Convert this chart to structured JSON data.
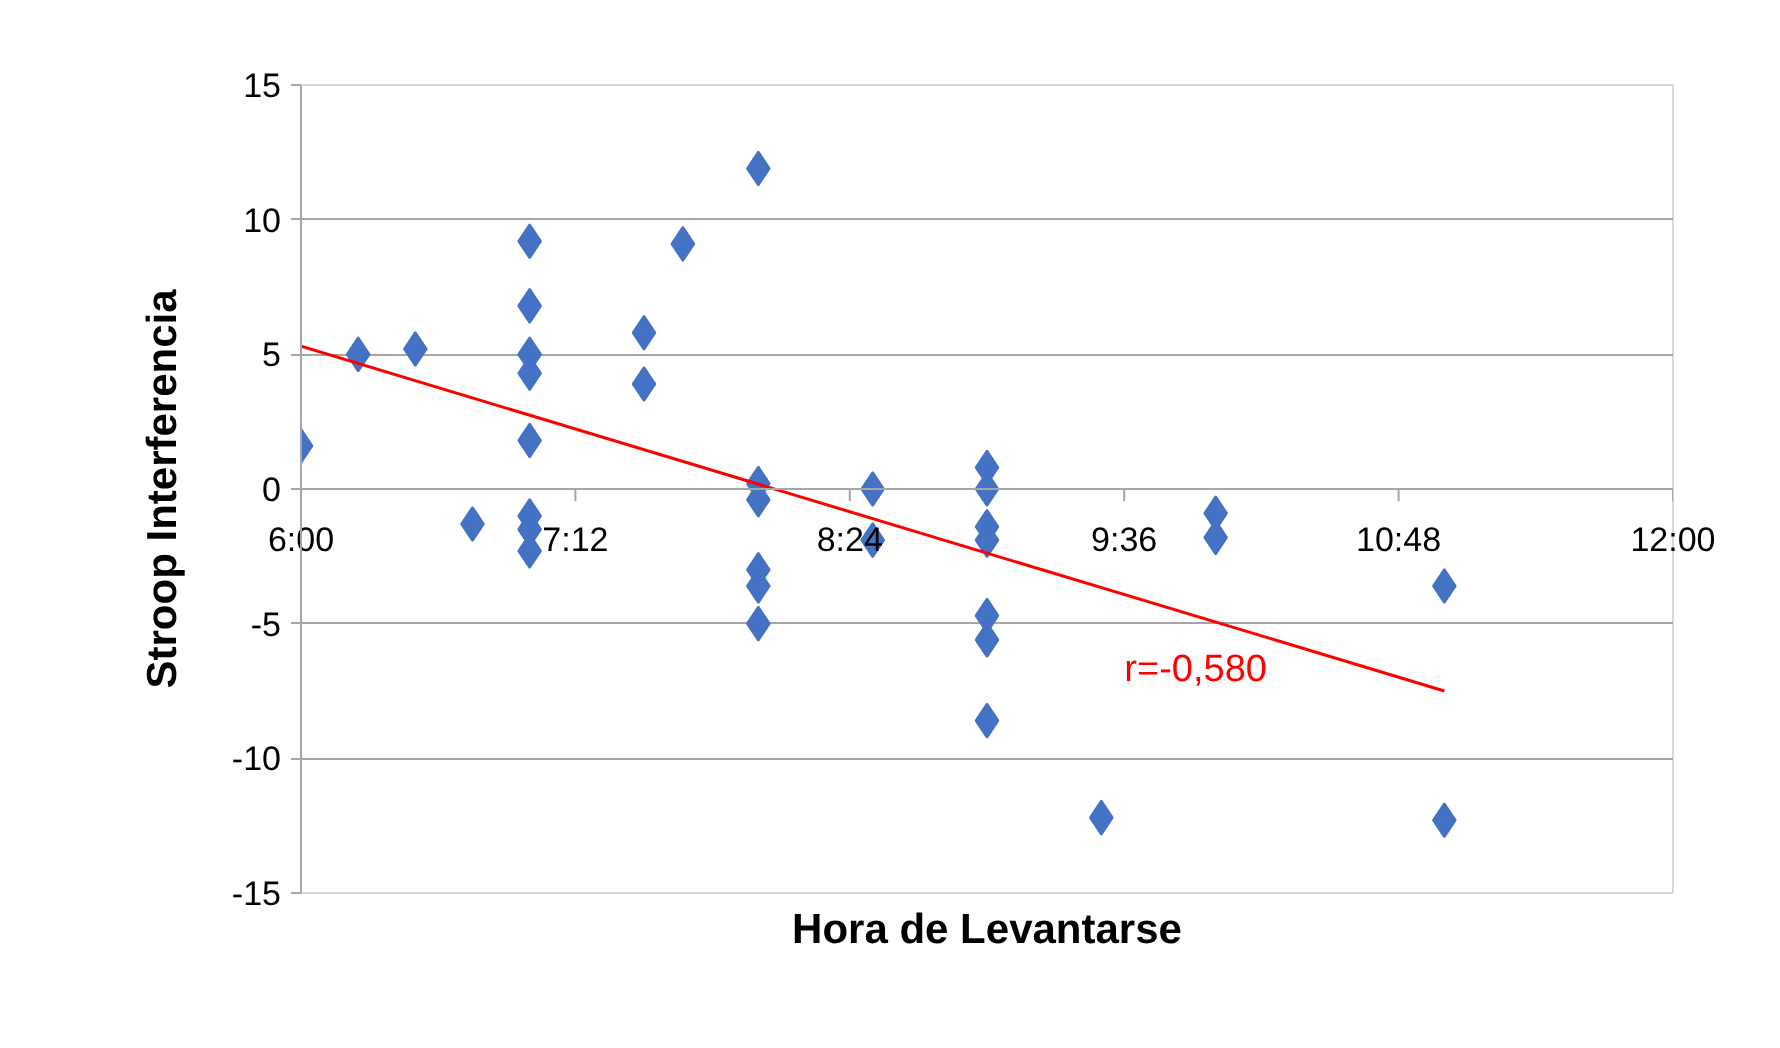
{
  "chart_data": {
    "type": "scatter",
    "xlabel": "Hora de Levantarse",
    "ylabel": "Stroop Interferencia",
    "xlim": [
      6,
      12
    ],
    "xticks": [
      {
        "value": 6,
        "label": "6:00"
      },
      {
        "value": 7.2,
        "label": "7:12"
      },
      {
        "value": 8.4,
        "label": "8:24"
      },
      {
        "value": 9.6,
        "label": "9:36"
      },
      {
        "value": 10.8,
        "label": "10:48"
      },
      {
        "value": 12,
        "label": "12:00"
      }
    ],
    "ylim": [
      -15,
      15
    ],
    "yticks": [
      -15,
      -10,
      -5,
      0,
      5,
      10,
      15
    ],
    "grid": "y",
    "series": [
      {
        "color": "#4472c4",
        "marker": "diamond",
        "x": [
          6.0,
          6.25,
          6.5,
          6.75,
          7.0,
          7.0,
          7.0,
          7.0,
          7.0,
          7.0,
          7.0,
          7.0,
          7.5,
          7.5,
          7.67,
          8.0,
          8.0,
          8.0,
          8.0,
          8.0,
          8.0,
          8.5,
          8.5,
          9.0,
          9.0,
          9.0,
          9.0,
          9.0,
          9.0,
          9.0,
          9.5,
          10.0,
          10.0,
          11.0,
          11.0
        ],
        "values": [
          1.6,
          5.0,
          5.2,
          -1.3,
          9.2,
          6.8,
          5.0,
          4.3,
          1.8,
          -1.0,
          -1.5,
          -2.3,
          5.8,
          3.9,
          9.1,
          11.9,
          0.2,
          -0.4,
          -3.0,
          -3.6,
          -5.0,
          0.0,
          -1.9,
          0.8,
          0.0,
          -1.4,
          -1.9,
          -4.7,
          -5.6,
          -8.6,
          -12.2,
          -0.9,
          -1.8,
          -3.6,
          -12.3
        ]
      },
      {
        "type": "line",
        "color": "#ff0000",
        "x": [
          6.0,
          11.0
        ],
        "values": [
          5.3,
          -7.5
        ]
      }
    ],
    "annotations": [
      "r=-0,580"
    ]
  }
}
